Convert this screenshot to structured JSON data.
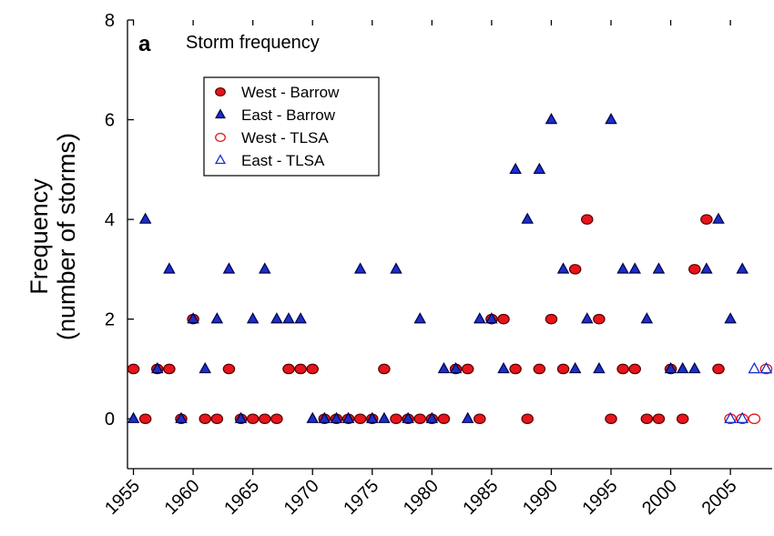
{
  "chart_data": {
    "type": "scatter",
    "panel_letter": "a",
    "title": "Storm frequency",
    "xlabel": "",
    "ylabel_lines": [
      "Frequency",
      "(number of storms)"
    ],
    "xlim": [
      1954.5,
      2008.5
    ],
    "ylim": [
      -1,
      8
    ],
    "x_ticks": [
      1955,
      1960,
      1965,
      1970,
      1975,
      1980,
      1985,
      1990,
      1995,
      2000,
      2005
    ],
    "y_ticks": [
      0,
      2,
      4,
      6,
      8
    ],
    "grid": false,
    "legend_position": "top-left",
    "series": [
      {
        "name": "West - Barrow",
        "marker": "circle",
        "filled": true,
        "fill": "#e8141b",
        "stroke": "#5a0000",
        "x": [
          1955,
          1956,
          1957,
          1958,
          1959,
          1960,
          1961,
          1962,
          1963,
          1964,
          1965,
          1966,
          1967,
          1968,
          1969,
          1970,
          1971,
          1972,
          1973,
          1974,
          1975,
          1976,
          1977,
          1978,
          1979,
          1980,
          1981,
          1982,
          1983,
          1984,
          1985,
          1986,
          1987,
          1988,
          1989,
          1990,
          1991,
          1992,
          1993,
          1994,
          1995,
          1996,
          1997,
          1998,
          1999,
          2000,
          2001,
          2002,
          2003,
          2004
        ],
        "y": [
          1,
          0,
          1,
          1,
          0,
          2,
          0,
          0,
          1,
          0,
          0,
          0,
          0,
          1,
          1,
          1,
          0,
          0,
          0,
          0,
          0,
          1,
          0,
          0,
          0,
          0,
          0,
          1,
          1,
          0,
          2,
          2,
          1,
          0,
          1,
          2,
          1,
          3,
          4,
          2,
          0,
          1,
          1,
          0,
          0,
          1,
          0,
          3,
          4,
          1
        ]
      },
      {
        "name": "East - Barrow",
        "marker": "triangle",
        "filled": true,
        "fill": "#1a2fc8",
        "stroke": "#00004a",
        "x": [
          1955,
          1956,
          1957,
          1958,
          1959,
          1960,
          1961,
          1962,
          1963,
          1964,
          1965,
          1966,
          1967,
          1968,
          1969,
          1970,
          1971,
          1972,
          1973,
          1974,
          1975,
          1976,
          1977,
          1978,
          1979,
          1980,
          1981,
          1982,
          1983,
          1984,
          1985,
          1986,
          1987,
          1988,
          1989,
          1990,
          1991,
          1992,
          1993,
          1994,
          1995,
          1996,
          1997,
          1998,
          1999,
          2000,
          2001,
          2002,
          2003,
          2004,
          2005,
          2006
        ],
        "y": [
          0,
          4,
          1,
          3,
          0,
          2,
          1,
          2,
          3,
          0,
          2,
          3,
          2,
          2,
          2,
          0,
          0,
          0,
          0,
          3,
          0,
          0,
          3,
          0,
          2,
          0,
          1,
          1,
          0,
          2,
          2,
          1,
          5,
          4,
          5,
          6,
          3,
          1,
          2,
          1,
          6,
          3,
          3,
          2,
          3,
          1,
          1,
          1,
          3,
          4,
          2,
          3
        ]
      },
      {
        "name": "West  - TLSA",
        "marker": "circle",
        "filled": false,
        "fill": "none",
        "stroke": "#e8141b",
        "x": [
          2005,
          2006,
          2007,
          2008
        ],
        "y": [
          0,
          0,
          0,
          1
        ]
      },
      {
        "name": "East - TLSA",
        "marker": "triangle",
        "filled": false,
        "fill": "none",
        "stroke": "#1a2fc8",
        "x": [
          2005,
          2006,
          2007,
          2008
        ],
        "y": [
          0,
          0,
          1,
          1
        ]
      }
    ]
  }
}
